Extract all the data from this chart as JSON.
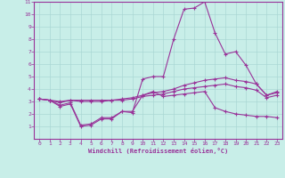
{
  "xlabel": "Windchill (Refroidissement éolien,°C)",
  "xlim": [
    -0.5,
    23.5
  ],
  "ylim": [
    0,
    11
  ],
  "xticks": [
    0,
    1,
    2,
    3,
    4,
    5,
    6,
    7,
    8,
    9,
    10,
    11,
    12,
    13,
    14,
    15,
    16,
    17,
    18,
    19,
    20,
    21,
    22,
    23
  ],
  "yticks": [
    1,
    2,
    3,
    4,
    5,
    6,
    7,
    8,
    9,
    10,
    11
  ],
  "background_color": "#c8eee8",
  "grid_color": "#aad8d4",
  "line_color": "#993399",
  "spine_color": "#993399",
  "tick_color": "#993399",
  "label_color": "#993399",
  "series": [
    [
      3.2,
      3.1,
      2.6,
      2.8,
      1.0,
      1.1,
      1.6,
      1.6,
      2.2,
      2.1,
      4.8,
      5.0,
      5.0,
      8.0,
      10.4,
      10.5,
      11.0,
      8.5,
      6.8,
      7.0,
      5.9,
      4.4,
      3.5,
      3.8
    ],
    [
      3.2,
      3.1,
      2.7,
      2.9,
      1.1,
      1.2,
      1.7,
      1.7,
      2.2,
      2.2,
      3.5,
      3.8,
      3.4,
      3.5,
      3.6,
      3.7,
      3.8,
      2.5,
      2.2,
      2.0,
      1.9,
      1.8,
      1.8,
      1.7
    ],
    [
      3.2,
      3.1,
      2.9,
      3.1,
      3.1,
      3.1,
      3.1,
      3.1,
      3.2,
      3.3,
      3.5,
      3.7,
      3.8,
      4.0,
      4.3,
      4.5,
      4.7,
      4.8,
      4.9,
      4.7,
      4.6,
      4.4,
      3.5,
      3.7
    ],
    [
      3.2,
      3.1,
      3.0,
      3.1,
      3.0,
      3.0,
      3.0,
      3.1,
      3.1,
      3.2,
      3.4,
      3.5,
      3.6,
      3.8,
      4.0,
      4.1,
      4.2,
      4.3,
      4.4,
      4.2,
      4.1,
      3.9,
      3.3,
      3.5
    ]
  ],
  "figsize": [
    3.2,
    2.0
  ],
  "dpi": 100,
  "marker": "+",
  "markersize": 3.0,
  "linewidth": 0.8
}
